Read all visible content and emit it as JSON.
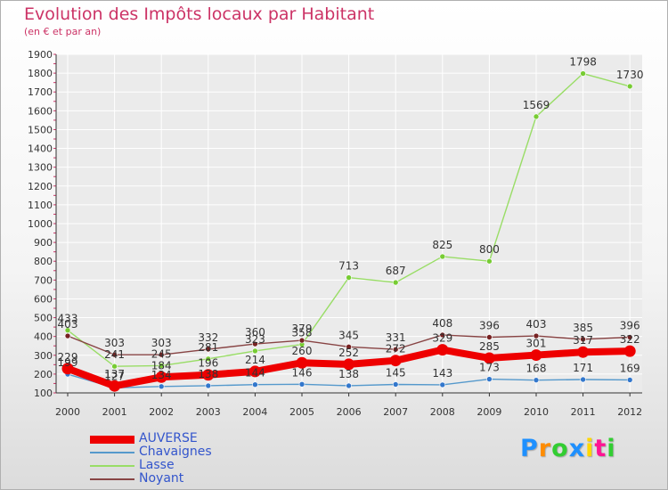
{
  "header": {
    "title": "Evolution des Impôts locaux par Habitant",
    "subtitle": "(en € et par an)"
  },
  "logo": {
    "text": "Proxiti",
    "colors": [
      "#1e90ff",
      "#ff8c00",
      "#32cd32",
      "#1e90ff",
      "#ffd700",
      "#ff1493",
      "#32cd32"
    ]
  },
  "colors": {
    "title": "#cc3366",
    "grid": "#ffffff",
    "axis": "#333333",
    "legend_text": "#3355cc"
  },
  "chart_data": {
    "type": "line",
    "x": [
      "2000",
      "2001",
      "2002",
      "2003",
      "2004",
      "2005",
      "2006",
      "2007",
      "2008",
      "2009",
      "2010",
      "2011",
      "2012"
    ],
    "ylim": [
      100,
      1900
    ],
    "yticks": [
      100,
      200,
      300,
      400,
      500,
      600,
      700,
      800,
      900,
      1000,
      1100,
      1200,
      1300,
      1400,
      1500,
      1600,
      1700,
      1800,
      1900
    ],
    "grid": true,
    "legend_position": "bottom-left",
    "series": [
      {
        "name": "AUVERSE",
        "color": "#ee0000",
        "thick": true,
        "values": [
          229,
          137,
          184,
          196,
          214,
          260,
          252,
          272,
          329,
          285,
          301,
          317,
          322
        ],
        "labels": [
          "229",
          "137",
          "184",
          "196",
          "214",
          "260",
          "252",
          "272",
          "329",
          "285",
          "301",
          "317",
          "322"
        ]
      },
      {
        "name": "Chavaignes",
        "color": "#5599cc",
        "marker": "#3377cc",
        "thick": false,
        "values": [
          199,
          127,
          134,
          138,
          144,
          146,
          138,
          145,
          143,
          173,
          168,
          171,
          169
        ],
        "labels": [
          "199",
          "127",
          "134",
          "138",
          "144",
          "146",
          "138",
          "145",
          "143",
          "173",
          "168",
          "171",
          "169"
        ]
      },
      {
        "name": "Lasse",
        "color": "#99dd66",
        "marker": "#77cc33",
        "thick": false,
        "values": [
          433,
          241,
          245,
          281,
          323,
          358,
          713,
          687,
          825,
          800,
          1569,
          1798,
          1730
        ],
        "labels": [
          "433",
          "241",
          "245",
          "281",
          "323",
          "358",
          "713",
          "687",
          "825",
          "800",
          "1569",
          "1798",
          "1730"
        ]
      },
      {
        "name": "Noyant",
        "color": "#884444",
        "marker": "#772222",
        "thick": false,
        "values": [
          403,
          303,
          303,
          332,
          360,
          379,
          345,
          331,
          408,
          396,
          403,
          385,
          396
        ],
        "labels": [
          "403",
          "303",
          "303",
          "332",
          "360",
          "379",
          "345",
          "331",
          "408",
          "396",
          "403",
          "385",
          "396"
        ]
      }
    ]
  }
}
